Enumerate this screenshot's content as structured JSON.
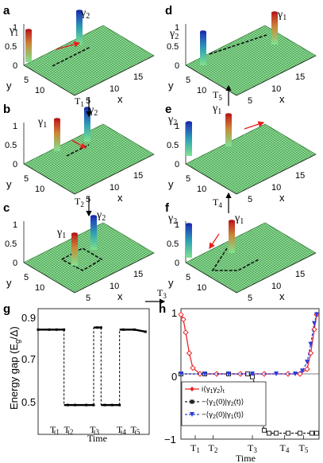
{
  "panel_letters": [
    "a",
    "b",
    "c",
    "d",
    "e",
    "f",
    "g",
    "h"
  ],
  "majoranas": {
    "gamma1": "γ",
    "gamma2": "γ",
    "sub1": "1",
    "sub2": "2"
  },
  "axes3d": {
    "x_label": "x",
    "y_label": "y",
    "z_ticks": [
      "1",
      "0.5",
      "0"
    ],
    "x_ticks": [
      "5",
      "10",
      "15"
    ],
    "y_ticks": [
      "5",
      "10"
    ]
  },
  "step_labels": {
    "t1": "1",
    "t2": "2",
    "t3": "3",
    "t4": "4",
    "t5": "5",
    "T": "T"
  },
  "panel_g": {
    "ylabel_main": "Energy gap (E",
    "ylabel_sub": "g",
    "ylabel_end": "/Δ)",
    "yticks": [
      "0.9",
      "0.7",
      "0.5"
    ],
    "xlabel": "Time"
  },
  "panel_h": {
    "yticks": [
      "1",
      "0",
      "−1"
    ],
    "xlabel": "Time",
    "legend": [
      {
        "main": "i⟨γ",
        "s1": "1",
        "mid": "γ",
        "s2": "2",
        "end": "⟩",
        "sub_t": "t",
        "color": "#e8252a",
        "marker": "diamond"
      },
      {
        "main": "−⟨γ",
        "s1": "1",
        "mid": "(0)|γ",
        "s2": "2",
        "end": "(t)⟩",
        "sub_t": "",
        "color": "#222222",
        "marker": "square"
      },
      {
        "main": "−⟨γ",
        "s1": "2",
        "mid": "(0)|γ",
        "s2": "1",
        "end": "(t)⟩",
        "sub_t": "",
        "color": "#2a3ddb",
        "marker": "triangle"
      }
    ]
  },
  "colors": {
    "surface": "#8fe59a",
    "mesh": "#2a6b2a",
    "path": "#111111",
    "arrow": "#e8201c"
  },
  "chart_data": [
    {
      "type": "line",
      "panel": "g",
      "title": "",
      "xlabel": "Time",
      "ylabel": "Energy gap (E_g/Δ)",
      "x_ticks": [
        "T1",
        "T2",
        "T3",
        "T4",
        "T5"
      ],
      "ylim": [
        0.4,
        1.0
      ],
      "series": [
        {
          "x": [
            0,
            0.6,
            1.0,
            1.4,
            1.6,
            2.0,
            2.6,
            3.0,
            3.2,
            3.4,
            3.6,
            4.0,
            4.4,
            4.6,
            5.2,
            5.8
          ],
          "y": [
            0.9,
            0.9,
            0.9,
            0.9,
            0.54,
            0.54,
            0.54,
            0.54,
            0.91,
            0.91,
            0.54,
            0.54,
            0.54,
            0.9,
            0.9,
            0.89
          ]
        }
      ]
    },
    {
      "type": "line",
      "panel": "h",
      "title": "",
      "xlabel": "Time",
      "ylabel": "",
      "x_ticks": [
        "T1",
        "T2",
        "T3",
        "T4",
        "T5"
      ],
      "ylim": [
        -1.1,
        1.1
      ],
      "series": [
        {
          "name": "i⟨γ1γ2⟩t",
          "x": [
            0,
            0.1,
            0.2,
            0.35,
            0.5,
            0.8,
            1.5,
            2.5,
            3.5,
            4.5,
            5.0,
            5.3,
            5.45,
            5.6,
            5.7
          ],
          "y": [
            1.0,
            0.92,
            0.7,
            0.35,
            0.1,
            0.0,
            0.0,
            0.0,
            0.0,
            0.0,
            0.0,
            0.08,
            0.35,
            0.75,
            1.0
          ]
        },
        {
          "name": "−⟨γ1(0)|γ2(t)⟩",
          "x": [
            0,
            1.0,
            2.0,
            2.8,
            3.0,
            3.2,
            3.35,
            3.5,
            3.7,
            4.0,
            4.5,
            5.0,
            5.5,
            5.7
          ],
          "y": [
            0.0,
            0.0,
            0.0,
            0.0,
            -0.05,
            -0.3,
            -0.7,
            -0.95,
            -1.0,
            -1.0,
            -1.0,
            -1.0,
            -1.0,
            -1.0
          ]
        },
        {
          "name": "−⟨γ2(0)|γ1(t)⟩",
          "x": [
            0,
            1.0,
            2.0,
            3.0,
            4.0,
            4.8,
            5.1,
            5.3,
            5.45,
            5.6,
            5.7
          ],
          "y": [
            0.0,
            0.0,
            0.0,
            0.0,
            0.0,
            0.0,
            0.05,
            0.2,
            0.5,
            0.85,
            1.0
          ]
        }
      ]
    }
  ]
}
